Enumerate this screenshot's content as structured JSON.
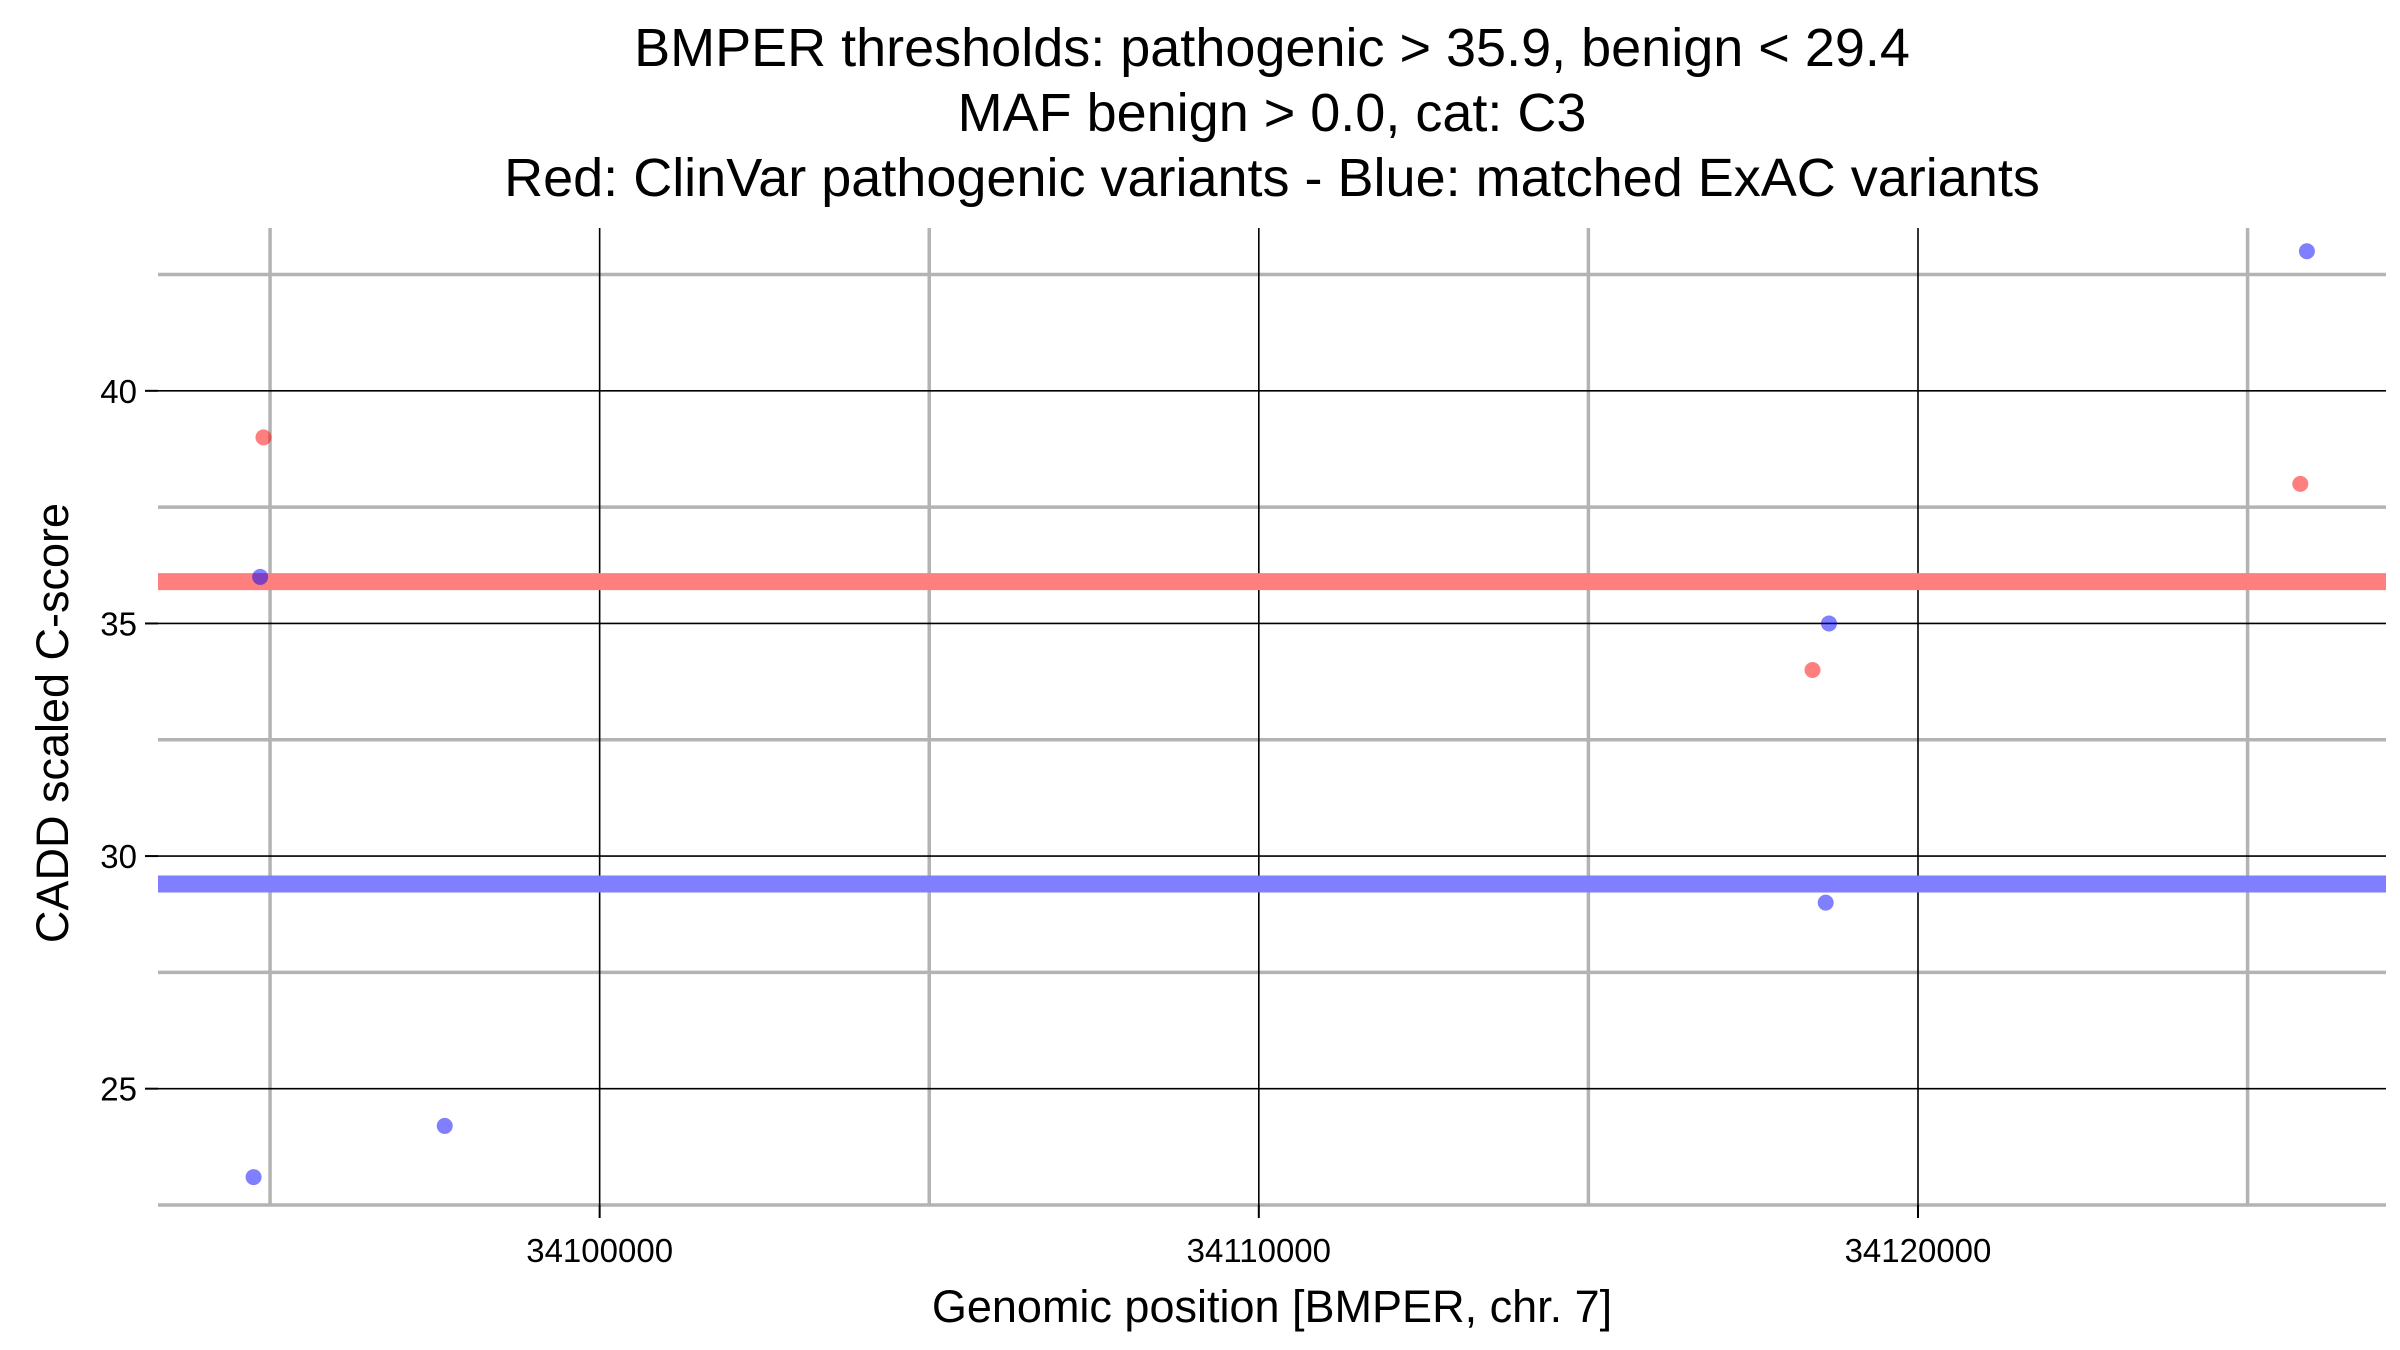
{
  "chart_data": {
    "type": "scatter",
    "title_lines": [
      "BMPER thresholds: pathogenic > 35.9, benign < 29.4",
      "MAF benign > 0.0, cat: C3",
      "Red: ClinVar pathogenic variants - Blue: matched ExAC variants"
    ],
    "xlabel": "Genomic position [BMPER, chr. 7]",
    "ylabel": "CADD scaled C-score",
    "xlim": [
      34093300,
      34127100
    ],
    "ylim": [
      22.5,
      43.5
    ],
    "x_ticks": [
      34100000,
      34110000,
      34120000
    ],
    "x_tick_labels": [
      "34100000",
      "34110000",
      "34120000"
    ],
    "x_minor_grid": [
      34095000,
      34105000,
      34115000,
      34125000
    ],
    "y_ticks": [
      25,
      30,
      35,
      40
    ],
    "y_tick_labels": [
      "25",
      "30",
      "35",
      "40"
    ],
    "y_minor_grid": [
      22.5,
      27.5,
      32.5,
      37.5,
      42.5
    ],
    "grid": true,
    "thresholds": [
      {
        "name": "pathogenic",
        "value": 35.9,
        "color": "#ff7f7f"
      },
      {
        "name": "benign",
        "value": 29.4,
        "color": "#7f7fff"
      }
    ],
    "series": [
      {
        "group": "clinvar",
        "color": "#ff0000",
        "points": [
          {
            "x": 34094900,
            "y": 39
          },
          {
            "x": 34118400,
            "y": 34
          },
          {
            "x": 34125800,
            "y": 38
          }
        ]
      },
      {
        "group": "exac",
        "color": "#0000ff",
        "points": [
          {
            "x": 34094850,
            "y": 36
          },
          {
            "x": 34094750,
            "y": 23.1
          },
          {
            "x": 34097650,
            "y": 24.2
          },
          {
            "x": 34118650,
            "y": 35
          },
          {
            "x": 34118600,
            "y": 29
          },
          {
            "x": 34125900,
            "y": 43
          }
        ]
      }
    ]
  }
}
